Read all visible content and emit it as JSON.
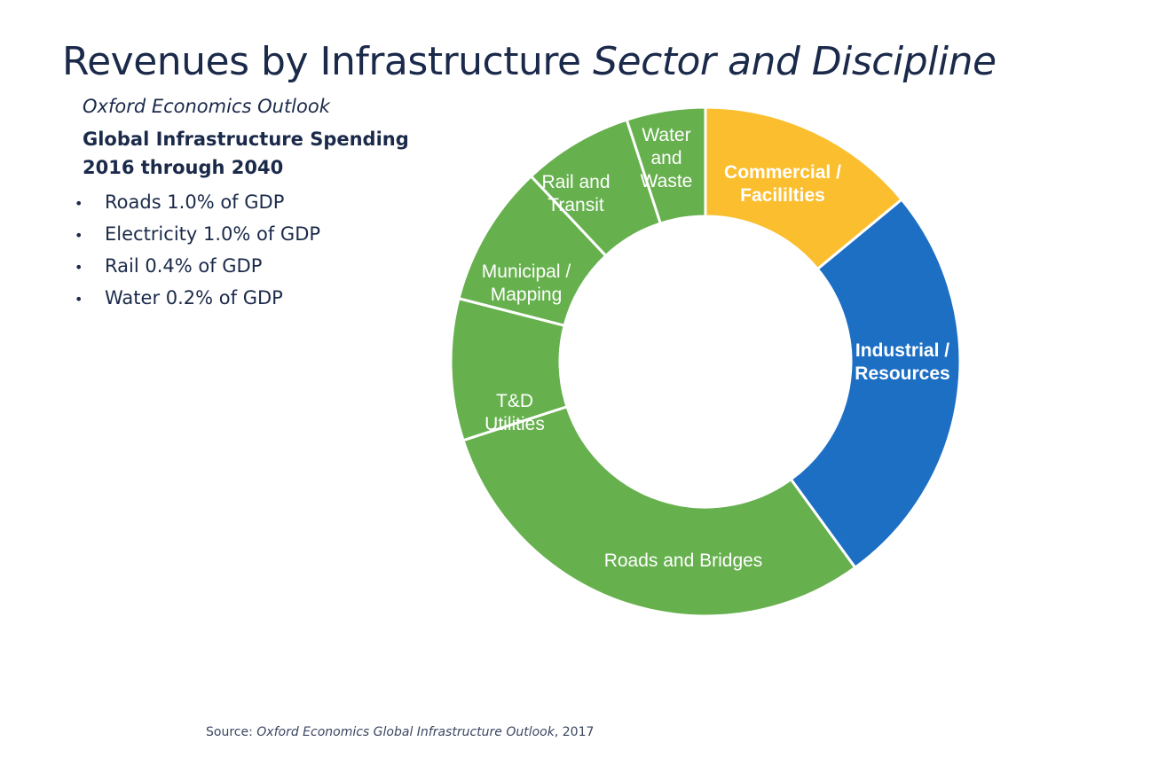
{
  "header": {
    "title_main": "Revenues by Infrastructure ",
    "title_italic": "Sector and Discipline"
  },
  "panel": {
    "source_name": "Oxford Economics Outlook",
    "heading_line1": "Global Infrastructure Spending",
    "heading_line2": "2016 through 2040",
    "bullets": [
      "Roads 1.0% of GDP",
      "Electricity 1.0% of GDP",
      "Rail 0.4% of GDP",
      "Water 0.2% of GDP"
    ]
  },
  "footer": {
    "source_prefix": "Source:  ",
    "source_title": "Oxford Economics Global Infrastructure Outlook",
    "source_year": ", 2017"
  },
  "chart_data": {
    "type": "pie",
    "donut": true,
    "start_angle_deg": 0,
    "direction": "clockwise",
    "legend": "none",
    "categories": [
      "Commercial / Facililties",
      "Industrial / Resources",
      "Roads and Bridges",
      "T&D Utilities",
      "Municipal / Mapping",
      "Rail and Transit",
      "Water and Waste"
    ],
    "values": [
      14,
      26,
      30,
      9,
      9,
      7,
      5
    ],
    "label_lines": [
      [
        "Commercial /",
        "Facililties"
      ],
      [
        "Industrial /",
        "Resources"
      ],
      [
        "Roads and Bridges"
      ],
      [
        "T&D",
        "Utilities"
      ],
      [
        "Municipal /",
        "Mapping"
      ],
      [
        "Rail and",
        "Transit"
      ],
      [
        "Water",
        "and",
        "Waste"
      ]
    ],
    "colors": [
      "#fbbe2e",
      "#1d6fc4",
      "#66b04e",
      "#66b04e",
      "#66b04e",
      "#66b04e",
      "#66b04e"
    ],
    "bold_labels": [
      true,
      true,
      false,
      false,
      false,
      false,
      false
    ],
    "separator_color": "#ffffff"
  }
}
